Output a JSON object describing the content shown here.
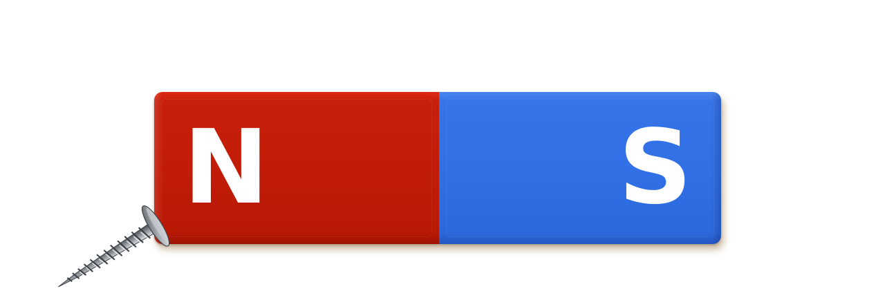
{
  "magnet": {
    "north_label": "N",
    "south_label": "S",
    "colors": {
      "north": "#c21c08",
      "south": "#3170e5",
      "letters": "#ffffff"
    }
  },
  "attached_object": {
    "icon": "screw-icon"
  }
}
